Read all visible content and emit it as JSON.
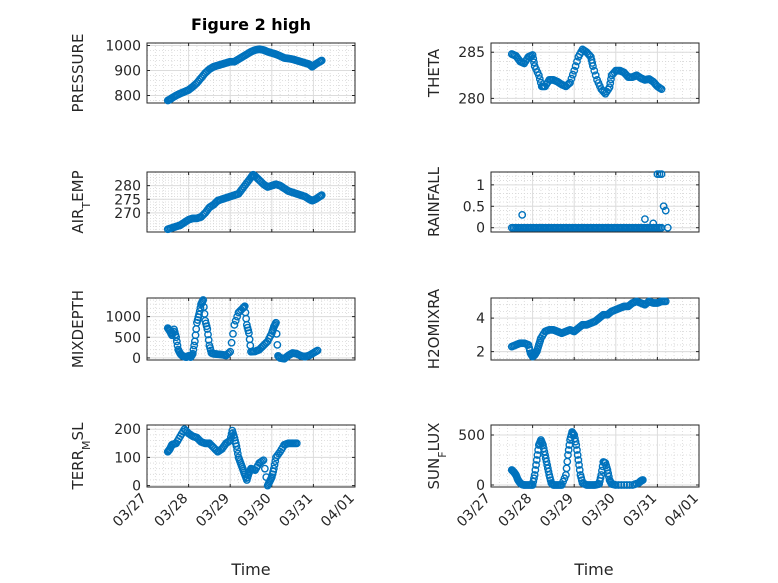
{
  "figure_title": "Figure 2 high",
  "x_axis_label": "Time",
  "x_tick_labels": [
    "03/27",
    "03/28",
    "03/29",
    "03/30",
    "03/31",
    "04/01"
  ],
  "marker_color": "#0072BD",
  "chart_data": [
    {
      "type": "scatter",
      "ylabel": "PRESSURE",
      "ylim": [
        770,
        1010
      ],
      "yticks": [
        800,
        900,
        1000
      ],
      "xrange_days": [
        0,
        5
      ],
      "points": [
        [
          0.5,
          780
        ],
        [
          0.55,
          784
        ],
        [
          0.6,
          790
        ],
        [
          0.7,
          800
        ],
        [
          0.8,
          808
        ],
        [
          0.9,
          815
        ],
        [
          1.0,
          822
        ],
        [
          1.1,
          835
        ],
        [
          1.2,
          850
        ],
        [
          1.3,
          870
        ],
        [
          1.4,
          890
        ],
        [
          1.5,
          905
        ],
        [
          1.6,
          915
        ],
        [
          1.7,
          920
        ],
        [
          1.8,
          925
        ],
        [
          1.9,
          930
        ],
        [
          2.0,
          935
        ],
        [
          2.1,
          935
        ],
        [
          2.2,
          945
        ],
        [
          2.3,
          955
        ],
        [
          2.4,
          965
        ],
        [
          2.5,
          975
        ],
        [
          2.6,
          982
        ],
        [
          2.7,
          985
        ],
        [
          2.8,
          982
        ],
        [
          2.9,
          975
        ],
        [
          3.0,
          970
        ],
        [
          3.1,
          965
        ],
        [
          3.2,
          958
        ],
        [
          3.3,
          950
        ],
        [
          3.4,
          948
        ],
        [
          3.5,
          945
        ],
        [
          3.6,
          940
        ],
        [
          3.7,
          935
        ],
        [
          3.8,
          930
        ],
        [
          3.9,
          925
        ],
        [
          3.97,
          915
        ],
        [
          4.05,
          925
        ],
        [
          4.15,
          935
        ],
        [
          4.2,
          940
        ]
      ]
    },
    {
      "type": "scatter",
      "ylabel": "THETA",
      "ylim": [
        279.5,
        286
      ],
      "yticks": [
        280,
        285
      ],
      "xrange_days": [
        0,
        5
      ],
      "points": [
        [
          0.5,
          284.8
        ],
        [
          0.6,
          284.6
        ],
        [
          0.7,
          284.0
        ],
        [
          0.8,
          283.8
        ],
        [
          0.9,
          284.5
        ],
        [
          1.0,
          284.7
        ],
        [
          1.05,
          283.5
        ],
        [
          1.15,
          282.5
        ],
        [
          1.22,
          281.3
        ],
        [
          1.3,
          281.3
        ],
        [
          1.4,
          282.0
        ],
        [
          1.5,
          282.0
        ],
        [
          1.6,
          281.8
        ],
        [
          1.7,
          281.5
        ],
        [
          1.8,
          281.3
        ],
        [
          1.9,
          281.7
        ],
        [
          2.0,
          283.0
        ],
        [
          2.1,
          284.5
        ],
        [
          2.2,
          285.3
        ],
        [
          2.3,
          285.0
        ],
        [
          2.4,
          284.5
        ],
        [
          2.45,
          283.5
        ],
        [
          2.55,
          282.0
        ],
        [
          2.65,
          281.0
        ],
        [
          2.75,
          280.5
        ],
        [
          2.85,
          281.2
        ],
        [
          2.9,
          282.5
        ],
        [
          3.0,
          283.0
        ],
        [
          3.1,
          283.0
        ],
        [
          3.2,
          282.8
        ],
        [
          3.3,
          282.3
        ],
        [
          3.4,
          282.3
        ],
        [
          3.5,
          282.5
        ],
        [
          3.6,
          282.2
        ],
        [
          3.7,
          282.0
        ],
        [
          3.8,
          282.1
        ],
        [
          3.9,
          281.8
        ],
        [
          4.0,
          281.3
        ],
        [
          4.1,
          281.0
        ]
      ]
    },
    {
      "type": "scatter",
      "ylabel": "AIR_TEMP",
      "ylabel_main": "AIR",
      "ylabel_sub": "T",
      "ylabel_rest": "EMP",
      "ylim": [
        263,
        285
      ],
      "yticks": [
        270,
        275,
        280
      ],
      "xrange_days": [
        0,
        5
      ],
      "points": [
        [
          0.5,
          264
        ],
        [
          0.6,
          264.5
        ],
        [
          0.7,
          265
        ],
        [
          0.8,
          265.5
        ],
        [
          0.9,
          266.5
        ],
        [
          1.0,
          267.5
        ],
        [
          1.1,
          268
        ],
        [
          1.2,
          268
        ],
        [
          1.3,
          268.5
        ],
        [
          1.4,
          270
        ],
        [
          1.5,
          272
        ],
        [
          1.6,
          273
        ],
        [
          1.7,
          274.5
        ],
        [
          1.8,
          275
        ],
        [
          1.9,
          275.5
        ],
        [
          2.0,
          276
        ],
        [
          2.1,
          276.5
        ],
        [
          2.2,
          277
        ],
        [
          2.3,
          279
        ],
        [
          2.4,
          281
        ],
        [
          2.5,
          283
        ],
        [
          2.55,
          284
        ],
        [
          2.6,
          283.5
        ],
        [
          2.7,
          282
        ],
        [
          2.8,
          280.5
        ],
        [
          2.9,
          279.5
        ],
        [
          3.0,
          280
        ],
        [
          3.1,
          280.5
        ],
        [
          3.2,
          280
        ],
        [
          3.3,
          279
        ],
        [
          3.4,
          278
        ],
        [
          3.5,
          277.5
        ],
        [
          3.6,
          277
        ],
        [
          3.7,
          276.5
        ],
        [
          3.8,
          276
        ],
        [
          3.9,
          275
        ],
        [
          3.97,
          274.5
        ],
        [
          4.05,
          275
        ],
        [
          4.15,
          276
        ],
        [
          4.2,
          276.5
        ]
      ]
    },
    {
      "type": "scatter",
      "ylabel": "RAINFALL",
      "ylim": [
        -0.1,
        1.3
      ],
      "yticks": [
        0,
        0.5,
        1
      ],
      "ytick_labels": [
        "0",
        "0.5",
        "1"
      ],
      "xrange_days": [
        0,
        5
      ],
      "zero_range": [
        0.5,
        4.1
      ],
      "points": [
        [
          0.75,
          0.3
        ],
        [
          3.7,
          0.2
        ],
        [
          3.9,
          0.1
        ],
        [
          4.0,
          1.25
        ],
        [
          4.05,
          1.25
        ],
        [
          4.1,
          1.25
        ],
        [
          4.15,
          0.5
        ],
        [
          4.2,
          0.4
        ],
        [
          4.25,
          0.0
        ]
      ]
    },
    {
      "type": "scatter",
      "ylabel": "MIXDEPTH",
      "ylim": [
        -50,
        1450
      ],
      "yticks": [
        0,
        500,
        1000
      ],
      "xrange_days": [
        0,
        5
      ],
      "points": [
        [
          0.5,
          720
        ],
        [
          0.55,
          650
        ],
        [
          0.6,
          550
        ],
        [
          0.65,
          690
        ],
        [
          0.7,
          500
        ],
        [
          0.75,
          200
        ],
        [
          0.8,
          100
        ],
        [
          0.85,
          50
        ],
        [
          0.9,
          30
        ],
        [
          0.95,
          20
        ],
        [
          1.0,
          50
        ],
        [
          1.05,
          20
        ],
        [
          1.1,
          100
        ],
        [
          1.15,
          400
        ],
        [
          1.2,
          850
        ],
        [
          1.25,
          1050
        ],
        [
          1.3,
          1300
        ],
        [
          1.35,
          1400
        ],
        [
          1.4,
          900
        ],
        [
          1.45,
          700
        ],
        [
          1.5,
          300
        ],
        [
          1.55,
          120
        ],
        [
          1.6,
          100
        ],
        [
          1.7,
          90
        ],
        [
          1.8,
          80
        ],
        [
          1.9,
          60
        ],
        [
          2.0,
          150
        ],
        [
          2.1,
          800
        ],
        [
          2.2,
          1100
        ],
        [
          2.3,
          1200
        ],
        [
          2.35,
          1250
        ],
        [
          2.4,
          800
        ],
        [
          2.45,
          600
        ],
        [
          2.5,
          150
        ],
        [
          2.6,
          160
        ],
        [
          2.7,
          200
        ],
        [
          2.8,
          300
        ],
        [
          2.9,
          400
        ],
        [
          3.0,
          600
        ],
        [
          3.05,
          750
        ],
        [
          3.1,
          850
        ],
        [
          3.15,
          50
        ],
        [
          3.2,
          0
        ],
        [
          3.3,
          -20
        ],
        [
          3.4,
          60
        ],
        [
          3.5,
          120
        ],
        [
          3.6,
          100
        ],
        [
          3.7,
          50
        ],
        [
          3.8,
          30
        ],
        [
          3.9,
          60
        ],
        [
          4.0,
          120
        ],
        [
          4.1,
          180
        ]
      ]
    },
    {
      "type": "scatter",
      "ylabel": "H2OMIXRA",
      "ylim": [
        1.5,
        5.2
      ],
      "yticks": [
        2,
        4
      ],
      "xrange_days": [
        0,
        5
      ],
      "points": [
        [
          0.5,
          2.3
        ],
        [
          0.6,
          2.4
        ],
        [
          0.7,
          2.5
        ],
        [
          0.8,
          2.5
        ],
        [
          0.9,
          2.4
        ],
        [
          0.95,
          1.9
        ],
        [
          1.0,
          1.7
        ],
        [
          1.05,
          1.8
        ],
        [
          1.1,
          2.0
        ],
        [
          1.15,
          2.4
        ],
        [
          1.2,
          2.8
        ],
        [
          1.3,
          3.2
        ],
        [
          1.4,
          3.3
        ],
        [
          1.5,
          3.3
        ],
        [
          1.6,
          3.2
        ],
        [
          1.7,
          3.1
        ],
        [
          1.8,
          3.2
        ],
        [
          1.9,
          3.3
        ],
        [
          2.0,
          3.2
        ],
        [
          2.1,
          3.4
        ],
        [
          2.2,
          3.6
        ],
        [
          2.3,
          3.6
        ],
        [
          2.4,
          3.7
        ],
        [
          2.5,
          3.8
        ],
        [
          2.6,
          4.0
        ],
        [
          2.7,
          4.2
        ],
        [
          2.8,
          4.2
        ],
        [
          2.9,
          4.4
        ],
        [
          3.0,
          4.5
        ],
        [
          3.1,
          4.6
        ],
        [
          3.2,
          4.7
        ],
        [
          3.3,
          4.7
        ],
        [
          3.4,
          4.9
        ],
        [
          3.5,
          5.0
        ],
        [
          3.6,
          4.9
        ],
        [
          3.7,
          4.8
        ],
        [
          3.8,
          5.0
        ],
        [
          3.9,
          4.9
        ],
        [
          4.0,
          4.9
        ],
        [
          4.1,
          5.0
        ],
        [
          4.2,
          5.0
        ]
      ]
    },
    {
      "type": "scatter",
      "ylabel": "TERR_MSL",
      "ylabel_main": "TERR",
      "ylabel_sub": "M",
      "ylabel_rest": "SL",
      "ylim": [
        -5,
        215
      ],
      "yticks": [
        0,
        100,
        200
      ],
      "xrange_days": [
        0,
        5
      ],
      "points": [
        [
          0.5,
          120
        ],
        [
          0.55,
          130
        ],
        [
          0.6,
          145
        ],
        [
          0.7,
          150
        ],
        [
          0.8,
          175
        ],
        [
          0.9,
          200
        ],
        [
          1.0,
          185
        ],
        [
          1.1,
          175
        ],
        [
          1.2,
          170
        ],
        [
          1.3,
          155
        ],
        [
          1.4,
          150
        ],
        [
          1.5,
          150
        ],
        [
          1.6,
          135
        ],
        [
          1.7,
          120
        ],
        [
          1.8,
          130
        ],
        [
          1.9,
          150
        ],
        [
          2.0,
          160
        ],
        [
          2.05,
          195
        ],
        [
          2.1,
          170
        ],
        [
          2.15,
          140
        ],
        [
          2.2,
          100
        ],
        [
          2.25,
          80
        ],
        [
          2.3,
          60
        ],
        [
          2.35,
          40
        ],
        [
          2.4,
          20
        ],
        [
          2.45,
          45
        ],
        [
          2.5,
          60
        ],
        [
          2.6,
          55
        ],
        [
          2.7,
          80
        ],
        [
          2.8,
          90
        ],
        [
          2.9,
          0
        ],
        [
          2.95,
          15
        ],
        [
          3.0,
          30
        ],
        [
          3.05,
          60
        ],
        [
          3.1,
          100
        ],
        [
          3.2,
          120
        ],
        [
          3.3,
          145
        ],
        [
          3.4,
          150
        ],
        [
          3.5,
          150
        ],
        [
          3.6,
          150
        ]
      ]
    },
    {
      "type": "scatter",
      "ylabel": "SUN_FLUX",
      "ylabel_main": "SUN",
      "ylabel_sub": "F",
      "ylabel_rest": "LUX",
      "ylim": [
        -20,
        600
      ],
      "yticks": [
        0,
        500
      ],
      "xrange_days": [
        0,
        5
      ],
      "points": [
        [
          0.5,
          150
        ],
        [
          0.55,
          130
        ],
        [
          0.6,
          100
        ],
        [
          0.65,
          50
        ],
        [
          0.7,
          20
        ],
        [
          0.75,
          5
        ],
        [
          0.8,
          0
        ],
        [
          0.9,
          0
        ],
        [
          1.0,
          0
        ],
        [
          1.05,
          100
        ],
        [
          1.1,
          250
        ],
        [
          1.15,
          400
        ],
        [
          1.2,
          450
        ],
        [
          1.25,
          400
        ],
        [
          1.3,
          300
        ],
        [
          1.35,
          200
        ],
        [
          1.4,
          100
        ],
        [
          1.45,
          20
        ],
        [
          1.5,
          0
        ],
        [
          1.6,
          0
        ],
        [
          1.7,
          0
        ],
        [
          1.8,
          100
        ],
        [
          1.85,
          300
        ],
        [
          1.9,
          450
        ],
        [
          1.95,
          530
        ],
        [
          2.0,
          500
        ],
        [
          2.05,
          400
        ],
        [
          2.1,
          250
        ],
        [
          2.15,
          100
        ],
        [
          2.2,
          20
        ],
        [
          2.3,
          0
        ],
        [
          2.4,
          0
        ],
        [
          2.5,
          0
        ],
        [
          2.6,
          10
        ],
        [
          2.65,
          100
        ],
        [
          2.7,
          230
        ],
        [
          2.75,
          220
        ],
        [
          2.8,
          150
        ],
        [
          2.85,
          50
        ],
        [
          2.9,
          10
        ],
        [
          3.0,
          0
        ],
        [
          3.2,
          0
        ],
        [
          3.4,
          0
        ],
        [
          3.55,
          20
        ],
        [
          3.6,
          40
        ],
        [
          3.65,
          50
        ]
      ]
    }
  ]
}
